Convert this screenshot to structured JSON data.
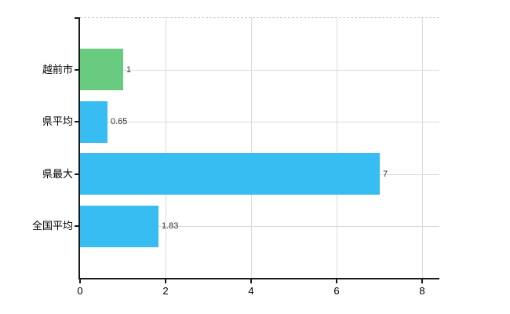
{
  "chart_data": {
    "type": "bar",
    "orientation": "horizontal",
    "title": "",
    "xlabel": "",
    "ylabel": "",
    "categories": [
      "越前市",
      "県平均",
      "県最大",
      "全国平均"
    ],
    "values": [
      1,
      0.65,
      7,
      1.83
    ],
    "value_labels": [
      "1",
      "0.65",
      "7",
      "1.83"
    ],
    "bar_colors": [
      "#68cb80",
      "#38bdf2",
      "#38bdf2",
      "#38bdf2"
    ],
    "x_tick_labels": [
      "0",
      "2",
      "4",
      "6",
      "8"
    ],
    "x_tick_values": [
      0,
      2,
      4,
      6,
      8
    ],
    "xlim": [
      0,
      8.4
    ],
    "grid": true,
    "legend_position": "none"
  },
  "colors": {
    "bar_green": "#68cb80",
    "bar_blue": "#38bdf2",
    "vertical_grid": "#dcdcdc",
    "horizontal_grid": "#d6ddd6",
    "top_border_dashed": "#c9c9c9",
    "axis": "#1a1a1a",
    "value_label_text": "#333333",
    "background": "#ffffff"
  }
}
